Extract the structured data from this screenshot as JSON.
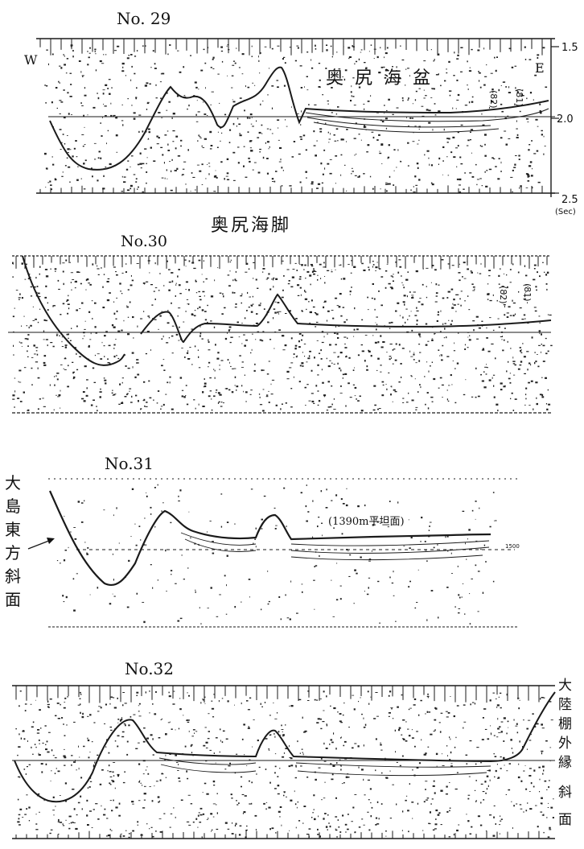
{
  "profiles": [
    {
      "id": "No. 29",
      "title": "No. 29",
      "west_label": "W",
      "east_label": "E",
      "basin_label": "奥尻海盆",
      "side_marks": [
        "(82)",
        "(81)"
      ],
      "time_scale": {
        "ticks": [
          "1.5",
          "2.0",
          "2.5"
        ],
        "unit": "(Sec)"
      },
      "caption_below": "奥尻海脚"
    },
    {
      "id": "No. 30",
      "title": "No.30",
      "side_marks": [
        "(82)",
        "(81)"
      ]
    },
    {
      "id": "No. 31",
      "title": "No.31",
      "left_label_vertical": [
        "大",
        "島",
        "東",
        "方",
        "斜",
        "面"
      ],
      "plateau_label": "(1390m平坦面)",
      "depth_mark": "1500"
    },
    {
      "id": "No. 32",
      "title": "No.32",
      "right_label_vertical": [
        "大",
        "陸",
        "棚",
        "外",
        "縁",
        "斜",
        "面"
      ]
    }
  ]
}
